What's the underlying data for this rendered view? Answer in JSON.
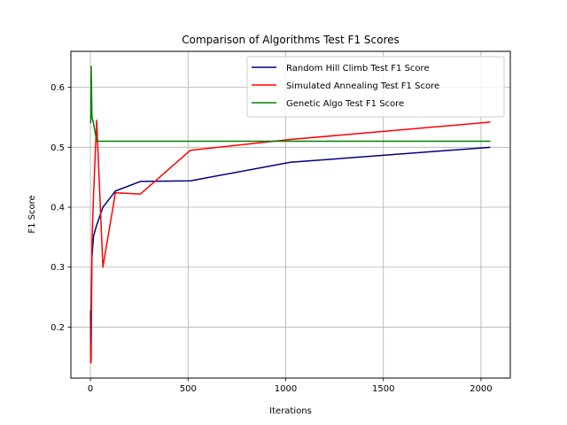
{
  "chart_data": {
    "type": "line",
    "title": "Comparison of Algorithms Test F1 Scores",
    "xlabel": "Iterations",
    "ylabel": "F1 Score",
    "xlim": [
      -100,
      2150
    ],
    "ylim": [
      0.115,
      0.66
    ],
    "xticks": [
      0,
      500,
      1000,
      1500,
      2000
    ],
    "yticks": [
      0.2,
      0.3,
      0.4,
      0.5,
      0.6
    ],
    "ytick_labels": [
      "0.2",
      "0.3",
      "0.4",
      "0.5",
      "0.6"
    ],
    "grid": true,
    "legend_position": "upper-right",
    "series": [
      {
        "name": "Random Hill Climb Test F1 Score",
        "color": "#000080",
        "x": [
          1,
          2,
          4,
          8,
          16,
          32,
          64,
          128,
          256,
          512,
          1024,
          2048
        ],
        "y": [
          0.228,
          0.17,
          0.23,
          0.317,
          0.352,
          0.37,
          0.4,
          0.427,
          0.443,
          0.444,
          0.475,
          0.5
        ]
      },
      {
        "name": "Simulated Annealing Test F1 Score",
        "color": "#ff0000",
        "x": [
          1,
          2,
          4,
          8,
          16,
          32,
          64,
          128,
          256,
          512,
          1024,
          2048
        ],
        "y": [
          0.17,
          0.14,
          0.145,
          0.34,
          0.42,
          0.545,
          0.3,
          0.424,
          0.422,
          0.495,
          0.513,
          0.542
        ]
      },
      {
        "name": "Genetic Algo Test F1 Score",
        "color": "#008000",
        "x": [
          1,
          2,
          4,
          8,
          16,
          32,
          64,
          128,
          256,
          512,
          1024,
          2048
        ],
        "y": [
          0.54,
          0.545,
          0.635,
          0.55,
          0.54,
          0.51,
          0.51,
          0.51,
          0.51,
          0.51,
          0.51,
          0.51
        ]
      }
    ]
  }
}
